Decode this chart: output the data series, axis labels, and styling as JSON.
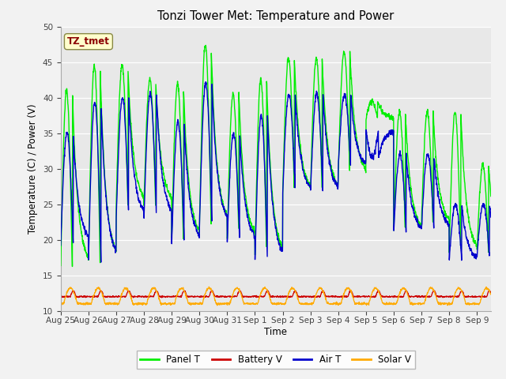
{
  "title": "Tonzi Tower Met: Temperature and Power",
  "ylabel": "Temperature (C) / Power (V)",
  "xlabel": "Time",
  "annotation": "TZ_tmet",
  "ylim": [
    10,
    50
  ],
  "background_color": "#e8e8e8",
  "fig_background": "#f2f2f2",
  "colors": {
    "panel_t": "#00ee00",
    "battery_v": "#cc0000",
    "air_t": "#0000cc",
    "solar_v": "#ffaa00"
  },
  "legend_labels": [
    "Panel T",
    "Battery V",
    "Air T",
    "Solar V"
  ],
  "tick_labels": [
    "Aug 25",
    "Aug 26",
    "Aug 27",
    "Aug 28",
    "Aug 29",
    "Aug 30",
    "Aug 31",
    "Sep 1",
    "Sep 2",
    "Sep 3",
    "Sep 4",
    "Sep 5",
    "Sep 6",
    "Sep 7",
    "Sep 8",
    "Sep 9"
  ],
  "yticks": [
    10,
    15,
    20,
    25,
    30,
    35,
    40,
    45,
    50
  ],
  "panel_peaks": [
    41.0,
    44.5,
    44.5,
    42.5,
    42.0,
    47.5,
    40.5,
    42.5,
    45.5,
    45.5,
    46.5,
    39.5,
    38.0,
    38.0,
    38.0,
    30.5
  ],
  "panel_troughs": [
    16.0,
    17.0,
    25.0,
    25.0,
    20.0,
    22.0,
    20.0,
    17.5,
    26.5,
    26.5,
    29.0,
    37.0,
    21.0,
    22.0,
    18.0,
    18.0
  ],
  "air_peaks": [
    35.0,
    39.5,
    40.0,
    40.5,
    36.5,
    42.0,
    35.0,
    37.5,
    40.5,
    40.5,
    40.5,
    31.5,
    32.0,
    32.0,
    25.0,
    25.0
  ],
  "air_troughs": [
    19.5,
    17.0,
    23.0,
    23.0,
    19.5,
    22.0,
    19.5,
    17.0,
    26.5,
    26.5,
    30.0,
    35.5,
    21.0,
    21.5,
    17.0,
    17.5
  ]
}
